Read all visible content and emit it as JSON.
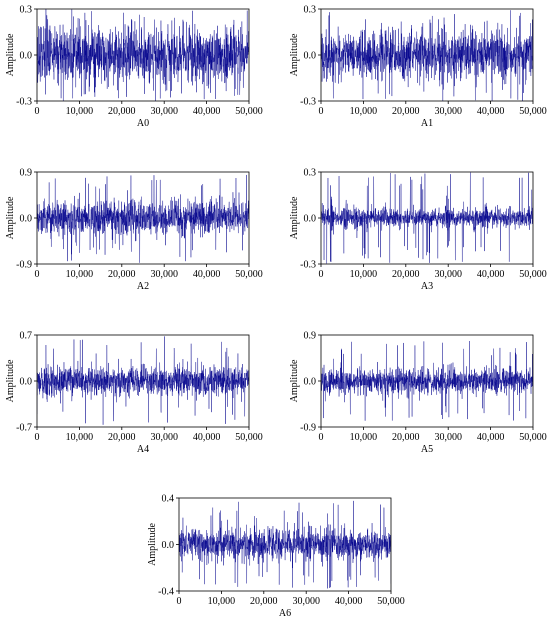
{
  "figure": {
    "signal_color": "#00008b",
    "axis_color": "#000000",
    "background": "#ffffff"
  },
  "chart_data": [
    {
      "type": "line",
      "name": "A0",
      "xlabel": "A0",
      "ylabel": "Amplitude",
      "xlim": [
        0,
        50000
      ],
      "ylim": [
        -0.3,
        0.3
      ],
      "xticks": [
        "0",
        "10,000",
        "20,000",
        "30,000",
        "40,000",
        "50,000"
      ],
      "yticks": [
        "0.3",
        "0.0",
        "-0.3"
      ],
      "grid": false,
      "series": [
        {
          "envelope": 0.16,
          "peak": 0.3,
          "bursts": []
        }
      ]
    },
    {
      "type": "line",
      "name": "A1",
      "xlabel": "A1",
      "ylabel": "Amplitude",
      "xlim": [
        0,
        50000
      ],
      "ylim": [
        -0.3,
        0.3
      ],
      "xticks": [
        "0",
        "10,000",
        "20,000",
        "30,000",
        "40,000",
        "50,000"
      ],
      "yticks": [
        "0.3",
        "0.0",
        "-0.3"
      ],
      "grid": false,
      "series": [
        {
          "envelope": 0.14,
          "peak": 0.3,
          "bursts": []
        }
      ]
    },
    {
      "type": "line",
      "name": "A2",
      "xlabel": "A2",
      "ylabel": "Amplitude",
      "xlim": [
        0,
        50000
      ],
      "ylim": [
        -0.9,
        0.9
      ],
      "xticks": [
        "0",
        "10,000",
        "20,000",
        "30,000",
        "40,000",
        "50,000"
      ],
      "yticks": [
        "0.9",
        "0.0",
        "-0.9"
      ],
      "grid": false,
      "series": [
        {
          "envelope": 0.3,
          "peak": 0.88,
          "bursts": []
        }
      ]
    },
    {
      "type": "line",
      "name": "A3",
      "xlabel": "A3",
      "ylabel": "Amplitude",
      "xlim": [
        0,
        50000
      ],
      "ylim": [
        -0.3,
        0.3
      ],
      "xticks": [
        "0",
        "10,000",
        "20,000",
        "30,000",
        "40,000",
        "50,000"
      ],
      "yticks": [
        "0.3",
        "0.0",
        "-0.3"
      ],
      "grid": false,
      "series": [
        {
          "envelope": 0.05,
          "peak": 0.3,
          "bursts": [
            [
              2500,
              0.18
            ],
            [
              6000,
              0.14
            ],
            [
              8500,
              0.16
            ],
            [
              15000,
              0.13
            ],
            [
              22000,
              0.12
            ],
            [
              29800,
              0.3
            ],
            [
              36000,
              0.15
            ],
            [
              39000,
              0.14
            ],
            [
              44500,
              0.12
            ]
          ]
        }
      ]
    },
    {
      "type": "line",
      "name": "A4",
      "xlabel": "A4",
      "ylabel": "Amplitude",
      "xlim": [
        0,
        50000
      ],
      "ylim": [
        -0.7,
        0.7
      ],
      "xticks": [
        "0",
        "10,000",
        "20,000",
        "30,000",
        "40,000",
        "50,000"
      ],
      "yticks": [
        "0.7",
        "0.0",
        "-0.7"
      ],
      "grid": false,
      "series": [
        {
          "envelope": 0.2,
          "peak": 0.68,
          "bursts": []
        }
      ]
    },
    {
      "type": "line",
      "name": "A5",
      "xlabel": "A5",
      "ylabel": "Amplitude",
      "xlim": [
        0,
        50000
      ],
      "ylim": [
        -0.9,
        0.9
      ],
      "xticks": [
        "0",
        "10,000",
        "20,000",
        "30,000",
        "40,000",
        "50,000"
      ],
      "yticks": [
        "0.9",
        "0.0",
        "-0.9"
      ],
      "grid": false,
      "series": [
        {
          "envelope": 0.22,
          "peak": 0.8,
          "bursts": []
        }
      ]
    },
    {
      "type": "line",
      "name": "A6",
      "xlabel": "A6",
      "ylabel": "Amplitude",
      "xlim": [
        0,
        50000
      ],
      "ylim": [
        -0.4,
        0.4
      ],
      "xticks": [
        "0",
        "10,000",
        "20,000",
        "30,000",
        "40,000",
        "50,000"
      ],
      "yticks": [
        "0.4",
        "0.0",
        "-0.4"
      ],
      "grid": false,
      "series": [
        {
          "envelope": 0.12,
          "peak": 0.38,
          "bursts": []
        }
      ]
    }
  ]
}
